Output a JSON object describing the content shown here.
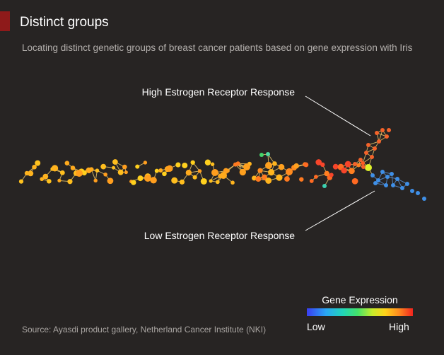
{
  "header": {
    "title": "Distinct groups",
    "subtitle": "Locating distinct genetic groups of breast cancer patients based on gene expression with Iris"
  },
  "annotations": {
    "high": "High Estrogen Receptor Response",
    "low": "Low Estrogen Receptor Response"
  },
  "legend": {
    "title": "Gene Expression",
    "low_label": "Low",
    "high_label": "High",
    "gradient_colors": [
      "#3a3df2",
      "#29a6f5",
      "#21d6b8",
      "#44e36a",
      "#c9ec2a",
      "#ffd21a",
      "#ff8a1f",
      "#f2241f"
    ]
  },
  "footer": {
    "source": "Source: Ayasdi product gallery, Netherland Cancer Institute (NKI)"
  },
  "colors": {
    "background": "#272423",
    "accent": "#8e1a1a",
    "edge": "#e9c66a",
    "annotation_line": "#ffffff"
  }
}
